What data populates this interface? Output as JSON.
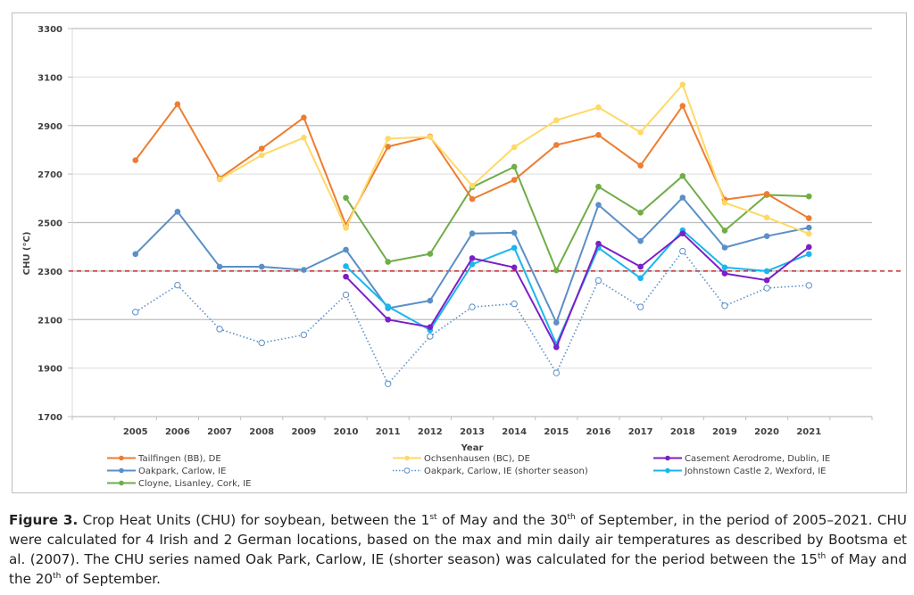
{
  "chart_data": {
    "type": "line",
    "title": "",
    "xlabel": "Year",
    "ylabel": "CHU (°C)",
    "ylim": [
      1700,
      3300
    ],
    "yticks": [
      "1700",
      "1900",
      "2100",
      "2300",
      "2500",
      "2700",
      "2900",
      "3100",
      "3300"
    ],
    "categories": [
      "2005",
      "2006",
      "2007",
      "2008",
      "2009",
      "2010",
      "2011",
      "2012",
      "2013",
      "2014",
      "2015",
      "2016",
      "2017",
      "2018",
      "2019",
      "2020",
      "2021"
    ],
    "grid": true,
    "legend_position": "bottom",
    "reference_line": {
      "value": 2300,
      "color": "#c00000",
      "style": "dashed"
    },
    "series": [
      {
        "name": "Tailfingen (BB), DE",
        "color": "#ed7d31",
        "style": "solid",
        "marker": "filled",
        "values": [
          2757,
          2988,
          2683,
          2805,
          2933,
          2490,
          2813,
          2855,
          2597,
          2676,
          2820,
          2861,
          2735,
          2981,
          2595,
          2618,
          2518
        ]
      },
      {
        "name": "Ochsenhausen (BC), DE",
        "color": "#ffd966",
        "style": "solid",
        "marker": "filled",
        "values": [
          null,
          null,
          2678,
          2778,
          2850,
          2478,
          2846,
          2853,
          2652,
          2811,
          2922,
          2975,
          2872,
          3069,
          2582,
          2521,
          2454
        ]
      },
      {
        "name": "Casement Aerodrome, Dublin, IE",
        "color": "#7b1fc8",
        "style": "solid",
        "marker": "filled",
        "values": [
          null,
          null,
          null,
          null,
          null,
          2277,
          2100,
          2069,
          2353,
          2315,
          1986,
          2413,
          2318,
          2455,
          2290,
          2262,
          2399
        ]
      },
      {
        "name": "Oakpark, Carlow, IE",
        "color": "#5b8fc7",
        "style": "solid",
        "marker": "filled",
        "values": [
          2370,
          2545,
          2318,
          2318,
          2305,
          2388,
          2147,
          2178,
          2455,
          2458,
          2088,
          2573,
          2424,
          2603,
          2397,
          2444,
          2479
        ]
      },
      {
        "name": "Oakpark, Carlow, IE (shorter season)",
        "color": "#5b8fc7",
        "style": "dotted",
        "marker": "hollow",
        "values": [
          2131,
          2242,
          2061,
          2004,
          2037,
          2202,
          1835,
          2031,
          2152,
          2165,
          1880,
          2261,
          2152,
          2382,
          2157,
          2230,
          2241
        ]
      },
      {
        "name": "Johnstown Castle 2, Wexford, IE",
        "color": "#1ab6ef",
        "style": "solid",
        "marker": "filled",
        "values": [
          null,
          null,
          null,
          null,
          null,
          2320,
          2154,
          2057,
          2328,
          2396,
          1999,
          2396,
          2271,
          2468,
          2315,
          2300,
          2370
        ]
      },
      {
        "name": "Cloyne, Lisanley, Cork, IE",
        "color": "#70ad47",
        "style": "solid",
        "marker": "filled",
        "values": [
          null,
          null,
          null,
          null,
          null,
          2602,
          2338,
          2371,
          2646,
          2730,
          2303,
          2648,
          2541,
          2692,
          2467,
          2614,
          2608
        ]
      }
    ]
  },
  "caption": {
    "label": "Figure 3.",
    "part1": " Crop Heat Units (CHU) for soybean, between the 1",
    "sup1": "st",
    "part2": " of May and the 30",
    "sup2": "th",
    "part3": " of September, in the period of 2005–2021. CHU were calculated for 4 Irish and 2 German locations, based on the max and min daily air temperatures as described by Bootsma et al. (2007). The CHU series named Oak Park, Carlow, IE (shorter season) was calculated for the period between the 15",
    "sup3": "th",
    "part4": " of May and the 20",
    "sup4": "th",
    "part5": " of September."
  }
}
